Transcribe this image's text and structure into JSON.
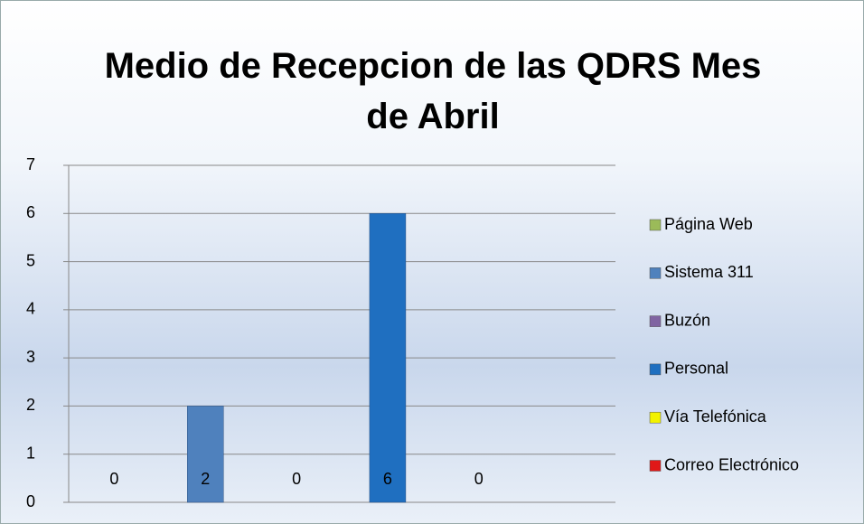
{
  "chart_data": {
    "type": "bar",
    "title": "Medio de Recepcion de las QDRS Mes de Abril",
    "series": [
      {
        "name": "Página Web",
        "color": "#9bbb59",
        "values": [
          0
        ]
      },
      {
        "name": "Sistema 311",
        "color": "#4f81bd",
        "values": [
          2
        ]
      },
      {
        "name": "Buzón",
        "color": "#8064a2",
        "values": [
          0
        ]
      },
      {
        "name": "Personal",
        "color": "#1f6fc0",
        "values": [
          6
        ]
      },
      {
        "name": "Vía Telefónica",
        "color": "#f2f200",
        "values": [
          0
        ]
      },
      {
        "name": "Correo Electrónico",
        "color": "#e01818",
        "values": [
          null
        ]
      }
    ],
    "ylim": [
      0,
      7
    ],
    "yticks": [
      0,
      1,
      2,
      3,
      4,
      5,
      6,
      7
    ],
    "grid": true,
    "legend": "right"
  }
}
